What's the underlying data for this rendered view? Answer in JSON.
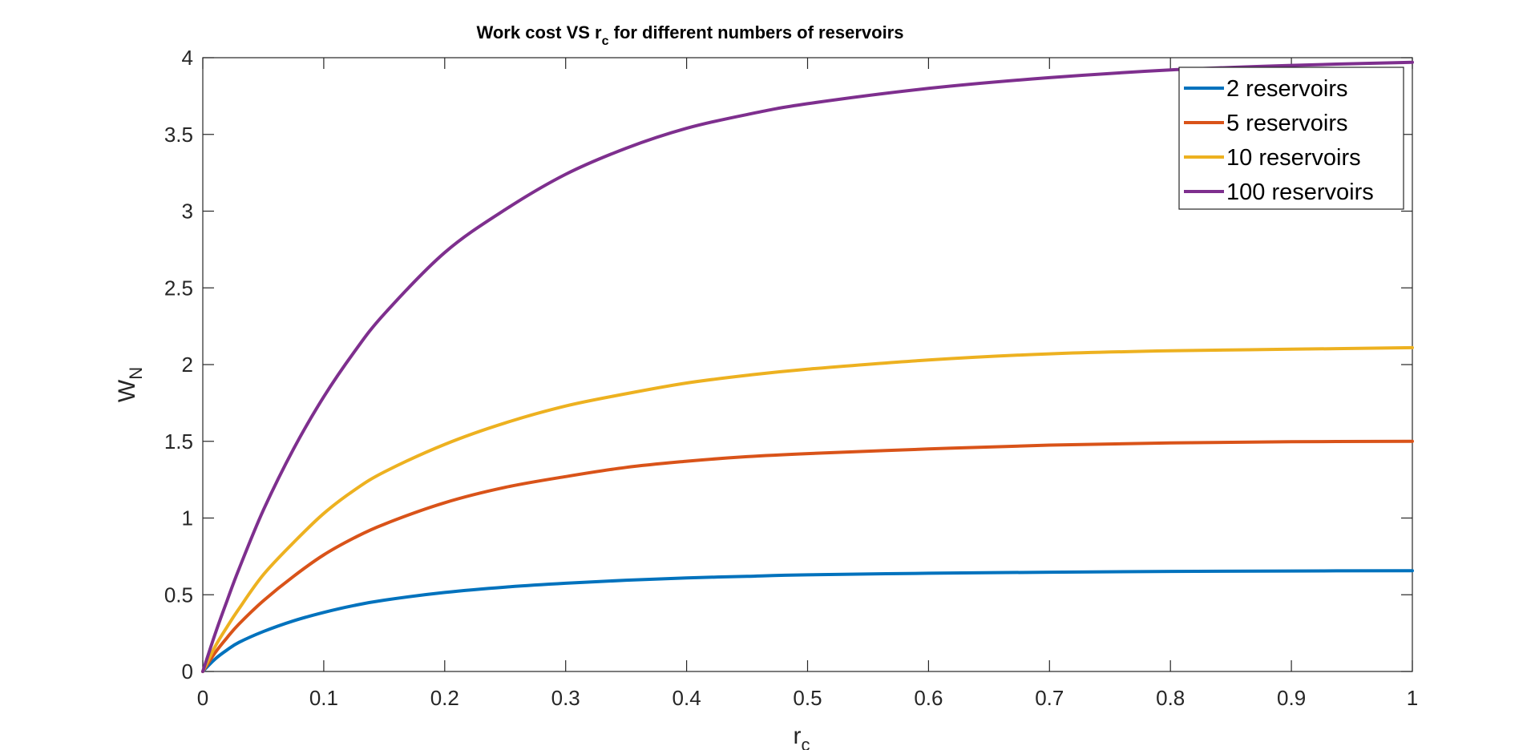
{
  "chart_data": {
    "type": "line",
    "title": {
      "prefix": "Work cost VS r",
      "sub": "c",
      "suffix": " for different numbers of reservoirs"
    },
    "xlabel": {
      "main": "r",
      "sub": "c"
    },
    "ylabel": {
      "main": "W",
      "sub": "N"
    },
    "xlim": [
      0,
      1
    ],
    "ylim": [
      0,
      4
    ],
    "xticks": [
      0,
      0.1,
      0.2,
      0.3,
      0.4,
      0.5,
      0.6,
      0.7,
      0.8,
      0.9,
      1
    ],
    "xtick_labels": [
      "0",
      "0.1",
      "0.2",
      "0.3",
      "0.4",
      "0.5",
      "0.6",
      "0.7",
      "0.8",
      "0.9",
      "1"
    ],
    "yticks": [
      0,
      0.5,
      1,
      1.5,
      2,
      2.5,
      3,
      3.5,
      4
    ],
    "ytick_labels": [
      "0",
      "0.5",
      "1",
      "1.5",
      "2",
      "2.5",
      "3",
      "3.5",
      "4"
    ],
    "grid": false,
    "legend_position": "top-right",
    "x": [
      0,
      0.01,
      0.02,
      0.03,
      0.05,
      0.075,
      0.1,
      0.125,
      0.15,
      0.2,
      0.25,
      0.3,
      0.35,
      0.4,
      0.45,
      0.5,
      0.6,
      0.7,
      0.8,
      0.9,
      1.0
    ],
    "series": [
      {
        "name": "2 reservoirs",
        "color": "#0072BD",
        "values": [
          0,
          0.08,
          0.14,
          0.19,
          0.26,
          0.33,
          0.385,
          0.43,
          0.465,
          0.515,
          0.55,
          0.575,
          0.595,
          0.61,
          0.62,
          0.63,
          0.64,
          0.647,
          0.652,
          0.655,
          0.657
        ]
      },
      {
        "name": "5 reservoirs",
        "color": "#D95319",
        "values": [
          0,
          0.12,
          0.22,
          0.31,
          0.46,
          0.62,
          0.76,
          0.87,
          0.96,
          1.1,
          1.2,
          1.27,
          1.33,
          1.37,
          1.4,
          1.42,
          1.45,
          1.475,
          1.49,
          1.497,
          1.5
        ]
      },
      {
        "name": "10 reservoirs",
        "color": "#EDB120",
        "values": [
          0,
          0.16,
          0.29,
          0.41,
          0.63,
          0.84,
          1.03,
          1.18,
          1.3,
          1.48,
          1.62,
          1.73,
          1.81,
          1.88,
          1.93,
          1.97,
          2.03,
          2.07,
          2.09,
          2.1,
          2.11
        ]
      },
      {
        "name": "100 reservoirs",
        "color": "#7E2F8E",
        "values": [
          0,
          0.24,
          0.46,
          0.67,
          1.05,
          1.45,
          1.79,
          2.08,
          2.33,
          2.73,
          3.01,
          3.24,
          3.41,
          3.54,
          3.63,
          3.7,
          3.8,
          3.87,
          3.92,
          3.95,
          3.97
        ]
      }
    ]
  }
}
